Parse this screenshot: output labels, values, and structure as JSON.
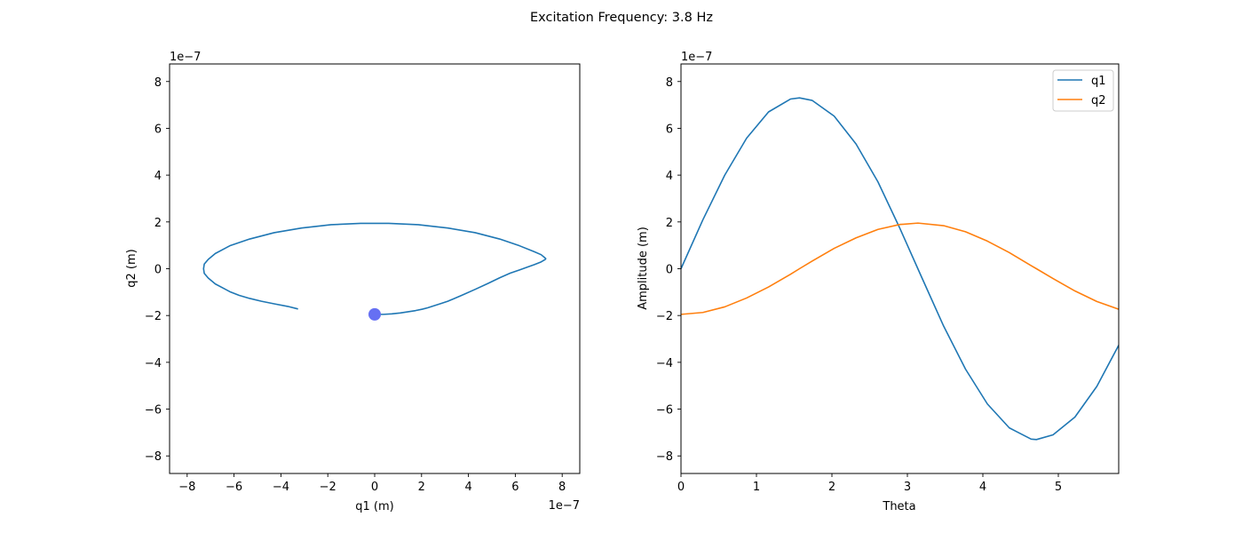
{
  "figure": {
    "title": "Excitation Frequency: 3.8 Hz"
  },
  "chart_data": [
    {
      "type": "line",
      "xlabel": "q1 (m)",
      "ylabel": "q2 (m)",
      "x_offset_text": "1e−7",
      "y_offset_text": "1e−7",
      "xlim": [
        -8.75e-07,
        8.75e-07
      ],
      "ylim": [
        -8.75e-07,
        8.75e-07
      ],
      "xticks": [
        -8e-07,
        -6e-07,
        -4e-07,
        -2e-07,
        0,
        2e-07,
        4e-07,
        6e-07,
        8e-07
      ],
      "yticks": [
        -8e-07,
        -6e-07,
        -4e-07,
        -2e-07,
        0,
        2e-07,
        4e-07,
        6e-07,
        8e-07
      ],
      "xtick_labels": [
        "−8",
        "−6",
        "−4",
        "−2",
        "0",
        "2",
        "4",
        "6",
        "8"
      ],
      "ytick_labels": [
        "−8",
        "−6",
        "−4",
        "−2",
        "0",
        "2",
        "4",
        "6",
        "8"
      ],
      "grid": false,
      "series": [
        {
          "color": "#1f77b4",
          "x": [
            0,
            3.7e-08,
            7.3e-08,
            1.09e-07,
            1.43e-07,
            1.74e-07,
            2.03e-07,
            2.26e-07,
            2.45e-07,
            2.79e-07,
            3.12e-07,
            3.71e-07,
            4.29e-07,
            4.83e-07,
            5.33e-07,
            5.78e-07,
            6.18e-07,
            6.52e-07,
            6.8e-07,
            7.1e-07,
            7.27e-07,
            7.3e-07,
            7.27e-07,
            7.1e-07,
            6.8e-07,
            6.18e-07,
            5.33e-07,
            4.29e-07,
            3.12e-07,
            1.86e-07,
            6e-08,
            -6e-08,
            -1.86e-07,
            -3.12e-07,
            -4.29e-07,
            -5.33e-07,
            -6.18e-07,
            -6.8e-07,
            -7.1e-07,
            -7.27e-07,
            -7.3e-07,
            -7.27e-07,
            -7.1e-07,
            -6.8e-07,
            -6.18e-07,
            -5.78e-07,
            -5.33e-07,
            -4.83e-07,
            -4.29e-07,
            -3.71e-07,
            -3.27e-07
          ],
          "y": [
            -1.95e-07,
            -1.95e-07,
            -1.93e-07,
            -1.89e-07,
            -1.84e-07,
            -1.79e-07,
            -1.73e-07,
            -1.67e-07,
            -1.61e-07,
            -1.5e-07,
            -1.39e-07,
            -1.14e-07,
            -8.8e-08,
            -6.3e-08,
            -3.9e-08,
            -1.9e-08,
            -5e-09,
            7e-09,
            1.7e-08,
            2.9e-08,
            3.9e-08,
            4.3e-08,
            4.6e-08,
            6e-08,
            7.3e-08,
            9.8e-08,
            1.27e-07,
            1.54e-07,
            1.74e-07,
            1.88e-07,
            1.94e-07,
            1.94e-07,
            1.88e-07,
            1.74e-07,
            1.54e-07,
            1.27e-07,
            9.8e-08,
            6.5e-08,
            4e-08,
            2e-08,
            0.0,
            -2e-08,
            -4e-08,
            -6.5e-08,
            -9.8e-08,
            -1.14e-07,
            -1.27e-07,
            -1.39e-07,
            -1.5e-07,
            -1.61e-07,
            -1.72e-07
          ]
        }
      ],
      "marker": {
        "x": 0,
        "y": -1.95e-07,
        "color": "#6670f3"
      }
    },
    {
      "type": "line",
      "xlabel": "Theta",
      "ylabel": "Amplitude (m)",
      "y_offset_text": "1e−7",
      "xlim": [
        0,
        5.8
      ],
      "ylim": [
        -8.75e-07,
        8.75e-07
      ],
      "xticks": [
        0,
        1,
        2,
        3,
        4,
        5
      ],
      "yticks": [
        -8e-07,
        -6e-07,
        -4e-07,
        -2e-07,
        0,
        2e-07,
        4e-07,
        6e-07,
        8e-07
      ],
      "xtick_labels": [
        "0",
        "1",
        "2",
        "3",
        "4",
        "5"
      ],
      "ytick_labels": [
        "−8",
        "−6",
        "−4",
        "−2",
        "0",
        "2",
        "4",
        "6",
        "8"
      ],
      "grid": false,
      "legend": "top-right",
      "series": [
        {
          "name": "q1",
          "color": "#1f77b4",
          "x": [
            0,
            0.29,
            0.58,
            0.87,
            1.16,
            1.45,
            1.57,
            1.74,
            2.03,
            2.32,
            2.61,
            2.9,
            3.19,
            3.48,
            3.77,
            4.06,
            4.35,
            4.64,
            4.71,
            4.93,
            5.22,
            5.51,
            5.8
          ],
          "y": [
            0,
            2.09e-07,
            4e-07,
            5.58e-07,
            6.7e-07,
            7.25e-07,
            7.3e-07,
            7.19e-07,
            6.52e-07,
            5.33e-07,
            3.71e-07,
            1.73e-07,
            -3.7e-08,
            -2.45e-07,
            -4.29e-07,
            -5.78e-07,
            -6.8e-07,
            -7.28e-07,
            -7.3e-07,
            -7.1e-07,
            -6.34e-07,
            -5.03e-07,
            -3.27e-07
          ]
        },
        {
          "name": "q2",
          "color": "#ff7f0e",
          "x": [
            0,
            0.29,
            0.58,
            0.87,
            1.16,
            1.45,
            1.57,
            1.74,
            2.03,
            2.32,
            2.61,
            2.9,
            3.14,
            3.48,
            3.77,
            4.06,
            4.35,
            4.64,
            4.71,
            4.93,
            5.22,
            5.51,
            5.8
          ],
          "y": [
            -1.95e-07,
            -1.87e-07,
            -1.63e-07,
            -1.25e-07,
            -7.8e-08,
            -2.4e-08,
            0,
            3.3e-08,
            8.7e-08,
            1.32e-07,
            1.68e-07,
            1.89e-07,
            1.95e-07,
            1.84e-07,
            1.58e-07,
            1.18e-07,
            6.9e-08,
            1.3e-08,
            0,
            -4.2e-08,
            -9.5e-08,
            -1.4e-07,
            -1.73e-07
          ]
        }
      ]
    }
  ]
}
